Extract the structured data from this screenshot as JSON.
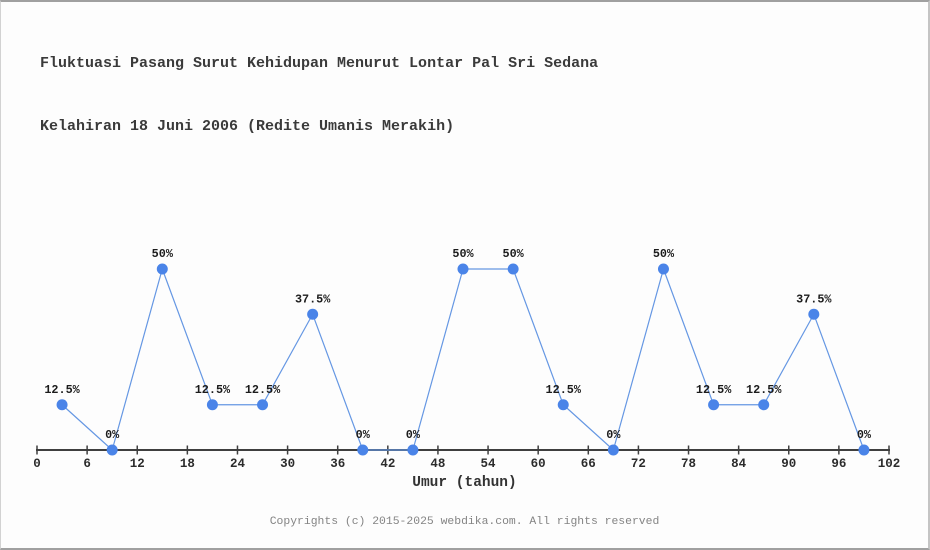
{
  "header": {
    "title_line1": "Fluktuasi Pasang Surut Kehidupan Menurut Lontar Pal Sri Sedana",
    "title_line2": "Kelahiran 18 Juni 2006 (Redite Umanis Merakih)"
  },
  "footer": {
    "copyright": "Copyrights (c) 2015-2025 webdika.com. All rights reserved"
  },
  "colors": {
    "marker": "#4a84e8",
    "line": "#6597e3",
    "axis": "#3f3f3f",
    "tick_label": "#2b2b2b",
    "point_label": "#1c1c1c",
    "title_text": "#3a3a3a",
    "footer_text": "#848484",
    "background": "#fdfdfd"
  },
  "chart_data": {
    "type": "line",
    "x": [
      3,
      9,
      15,
      21,
      27,
      33,
      39,
      45,
      51,
      57,
      63,
      69,
      75,
      81,
      87,
      93,
      99
    ],
    "values": [
      12.5,
      0,
      50,
      12.5,
      12.5,
      37.5,
      0,
      0,
      50,
      50,
      12.5,
      0,
      50,
      12.5,
      12.5,
      37.5,
      0
    ],
    "point_labels": [
      "12.5%",
      "0%",
      "50%",
      "12.5%",
      "12.5%",
      "37.5%",
      "0%",
      "0%",
      "50%",
      "50%",
      "12.5%",
      "0%",
      "50%",
      "12.5%",
      "12.5%",
      "37.5%",
      "0%"
    ],
    "x_ticks": [
      0,
      6,
      12,
      18,
      24,
      30,
      36,
      42,
      48,
      54,
      60,
      66,
      72,
      78,
      84,
      90,
      96,
      102
    ],
    "xlim": [
      0,
      102
    ],
    "ylim": [
      0,
      50
    ],
    "xlabel": "Umur (tahun)",
    "ylabel": "",
    "title": "Fluktuasi Pasang Surut Kehidupan Menurut Lontar Pal Sri Sedana\nKelahiran 18 Juni 2006 (Redite Umanis Merakih)",
    "grid": false,
    "legend": false,
    "y_axis_visible": false,
    "markers": true
  }
}
